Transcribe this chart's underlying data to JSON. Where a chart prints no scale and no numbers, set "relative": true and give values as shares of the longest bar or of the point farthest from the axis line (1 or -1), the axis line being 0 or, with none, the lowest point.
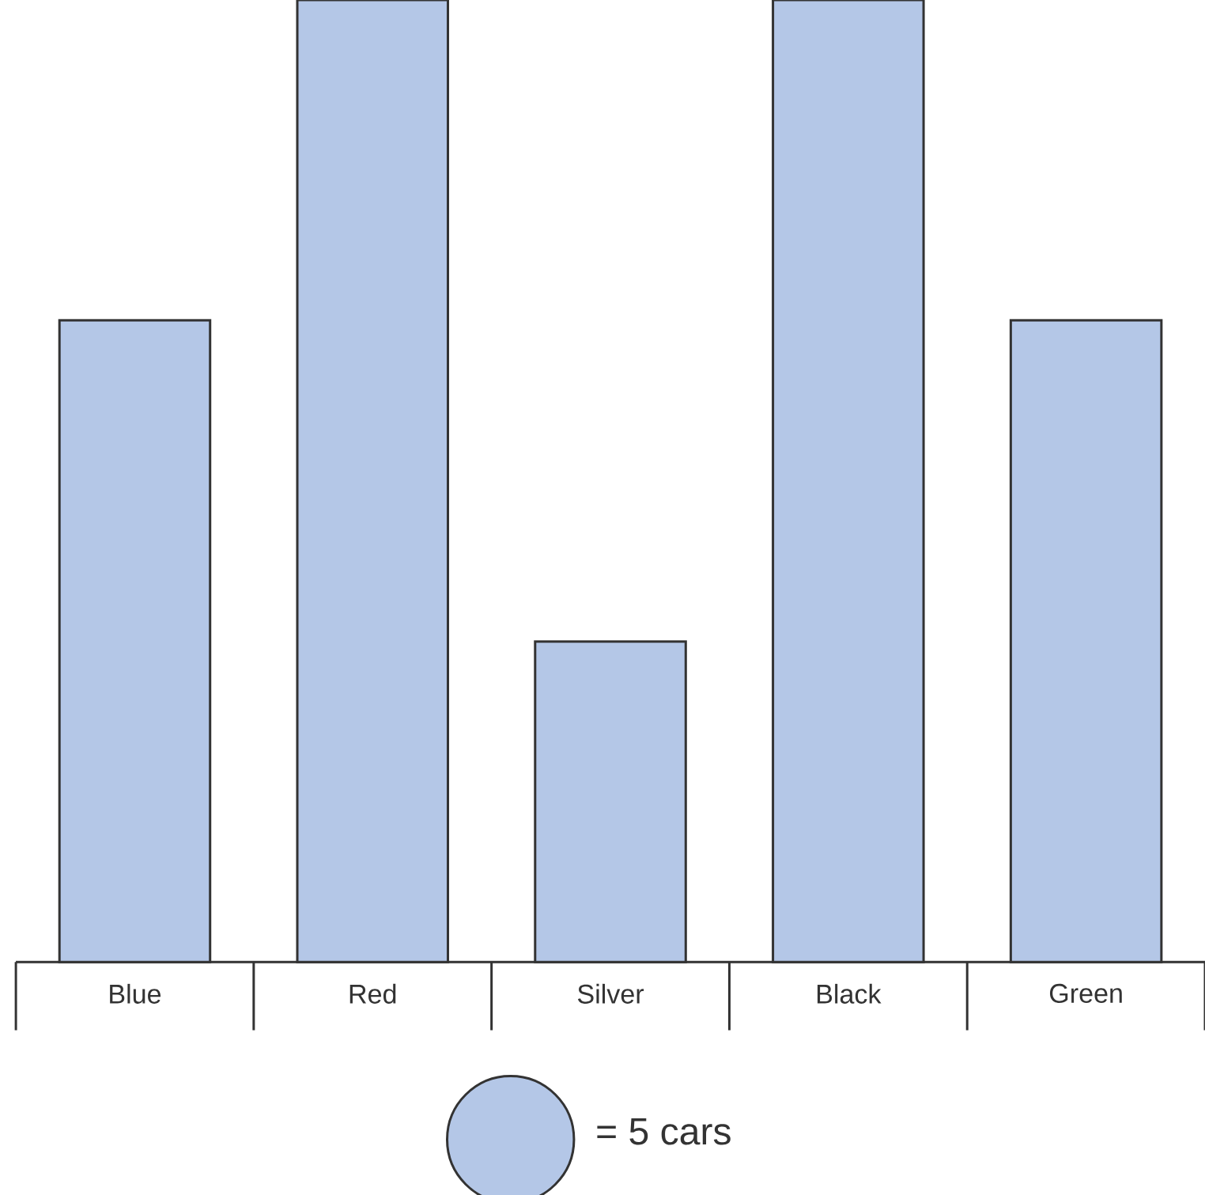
{
  "chart_data": {
    "type": "bar",
    "relative": true,
    "categories": [
      "Blue",
      "Red",
      "Silver",
      "Black",
      "Green"
    ],
    "values": [
      0.667,
      1,
      0.333,
      1,
      0.667
    ],
    "color": "#b4c7e7",
    "annotations": [
      "= 5 cars"
    ]
  }
}
